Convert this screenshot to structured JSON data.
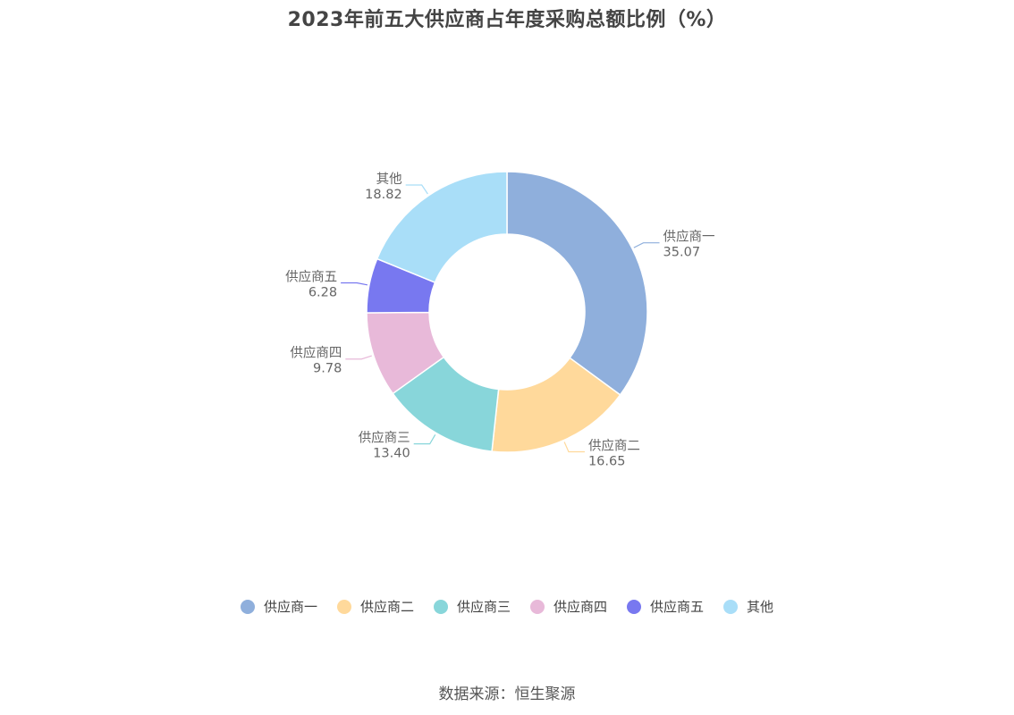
{
  "title": "2023年前五大供应商占年度采购总额比例（%）",
  "source": "数据来源：恒生聚源",
  "chart_data": {
    "type": "pie",
    "variant": "donut",
    "title": "2023年前五大供应商占年度采购总额比例（%）",
    "slices": [
      {
        "name": "供应商一",
        "value": 35.07,
        "label": "35.07",
        "color": "#8fafdc"
      },
      {
        "name": "供应商二",
        "value": 16.65,
        "label": "16.65",
        "color": "#ffd99b"
      },
      {
        "name": "供应商三",
        "value": 13.4,
        "label": "13.40",
        "color": "#88d6da"
      },
      {
        "name": "供应商四",
        "value": 9.78,
        "label": "9.78",
        "color": "#e8b9d9"
      },
      {
        "name": "供应商五",
        "value": 6.28,
        "label": "6.28",
        "color": "#7878f0"
      },
      {
        "name": "其他",
        "value": 18.82,
        "label": "18.82",
        "color": "#a9def8"
      }
    ],
    "legend_position": "bottom"
  }
}
